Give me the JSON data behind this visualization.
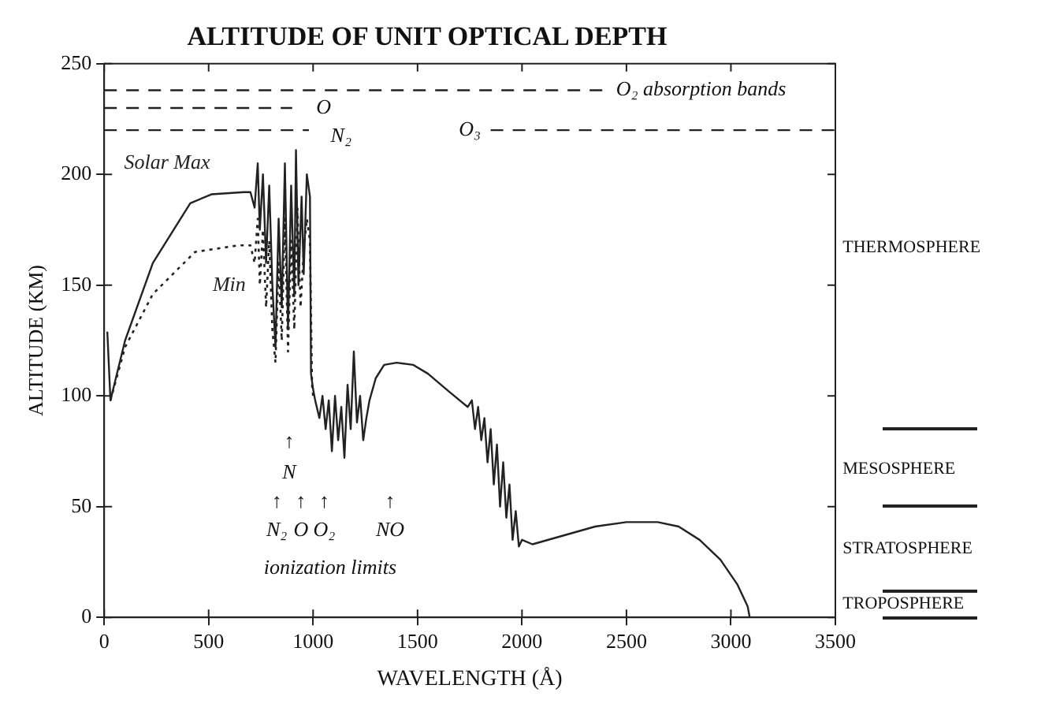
{
  "chart_data": {
    "type": "line",
    "title": "ALTITUDE OF UNIT OPTICAL DEPTH",
    "xlabel": "WAVELENGTH (Å)",
    "ylabel": "ALTITUDE (KM)",
    "xlim": [
      0,
      3500
    ],
    "xticks": [
      0,
      500,
      1000,
      1500,
      2000,
      2500,
      3000,
      3500
    ],
    "ylim": [
      0,
      250
    ],
    "yticks": [
      0,
      50,
      100,
      150,
      200,
      250
    ],
    "grid": false,
    "legend": "top left",
    "marker": "none",
    "series": [
      {
        "name": "Solar Max",
        "color": "#222222",
        "line_style": "solid",
        "x": [
          15,
          30,
          100,
          233,
          412,
          513,
          669,
          700,
          720,
          735,
          745,
          760,
          775,
          790,
          805,
          820,
          835,
          850,
          865,
          880,
          895,
          910,
          918,
          930,
          945,
          955,
          970,
          985,
          990,
          1000,
          1010,
          1030,
          1045,
          1060,
          1075,
          1090,
          1105,
          1120,
          1135,
          1150,
          1165,
          1180,
          1195,
          1210,
          1225,
          1240,
          1255,
          1270,
          1300,
          1340,
          1400,
          1480,
          1550,
          1650,
          1740,
          1760,
          1775,
          1790,
          1805,
          1820,
          1835,
          1850,
          1865,
          1880,
          1895,
          1910,
          1925,
          1940,
          1955,
          1970,
          1985,
          2000,
          2050,
          2200,
          2350,
          2500,
          2650,
          2750,
          2850,
          2950,
          3030,
          3080,
          3090
        ],
        "values": [
          129,
          98,
          125,
          160,
          187,
          191,
          192,
          192,
          185,
          205,
          175,
          200,
          160,
          195,
          150,
          122,
          180,
          140,
          205,
          130,
          195,
          145,
          211,
          150,
          190,
          155,
          200,
          190,
          110,
          103,
          98,
          90,
          100,
          85,
          98,
          75,
          100,
          80,
          95,
          72,
          105,
          85,
          120,
          88,
          100,
          80,
          90,
          98,
          108,
          114,
          115,
          114,
          110,
          102,
          95,
          98,
          85,
          95,
          80,
          90,
          70,
          85,
          60,
          78,
          50,
          70,
          45,
          60,
          35,
          48,
          32,
          35,
          33,
          37,
          41,
          43,
          43,
          41,
          35,
          26,
          15,
          5,
          0
        ]
      },
      {
        "name": "Min",
        "color": "#222222",
        "line_style": "dotted",
        "x": [
          30,
          100,
          233,
          435,
          645,
          700,
          720,
          735,
          745,
          760,
          775,
          790,
          805,
          820,
          835,
          850,
          865,
          880,
          895,
          910,
          925,
          940,
          955,
          970,
          985,
          995,
          1000
        ],
        "values": [
          98,
          122,
          146,
          165,
          168,
          168,
          160,
          180,
          150,
          175,
          140,
          170,
          130,
          115,
          160,
          125,
          180,
          120,
          170,
          130,
          185,
          140,
          165,
          180,
          170,
          105,
          100
        ]
      },
      {
        "color": "#222222",
        "line_style": "dashed",
        "x": [
          0,
          2395
        ],
        "values": [
          238,
          238
        ]
      },
      {
        "color": "#222222",
        "line_style": "dashed",
        "x": [
          0,
          900
        ],
        "values": [
          230,
          230
        ]
      },
      {
        "color": "#222222",
        "line_style": "dashed",
        "x": [
          0,
          980
        ],
        "values": [
          220,
          220
        ]
      },
      {
        "color": "#222222",
        "line_style": "dashed",
        "x": [
          1850,
          3500
        ],
        "values": [
          220,
          220
        ]
      }
    ],
    "annotations": [
      "O₂ absorption bands",
      "O",
      "N₂",
      "O₃",
      "THERMOSPHERE",
      "MESOSPHERE",
      "STRATOSPHERE",
      "TROPOSPHERE",
      "↑",
      "N",
      "↑",
      "↑",
      "↑",
      "↑",
      "N₂",
      "O",
      "O₂",
      "NO",
      "ionization limits"
    ]
  }
}
